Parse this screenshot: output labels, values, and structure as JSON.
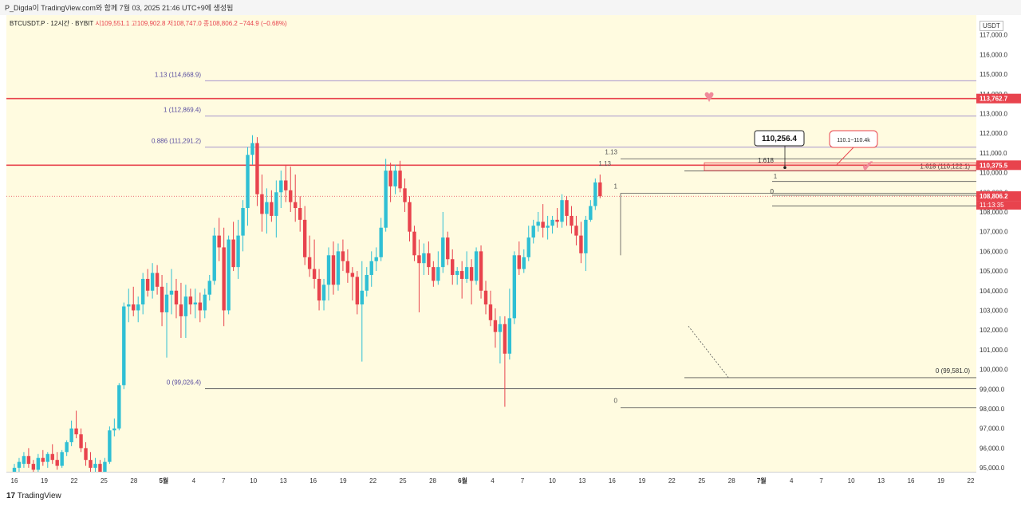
{
  "header": {
    "text": "P_Digda이 TradingView.com와 함께 7월 03, 2025 21:46 UTC+9에 생성됨"
  },
  "symbol_line": {
    "symbol": "BTCUSDT.P · 12시간 · BYBIT",
    "ohlc": "시109,551.1 고109,902.8 저108,747.0 종108,806.2 −744.9 (−0.68%)"
  },
  "currency": "USDT",
  "footer": {
    "logo": "TradingView",
    "logo_mark": "17"
  },
  "colors": {
    "up": "#2fbfd4",
    "down": "#e8434d",
    "background": "#fffbe0",
    "resistance": "#e8434d",
    "fib_line": "#9a88c9"
  },
  "chart_data": {
    "type": "candlestick",
    "ylim": [
      94800,
      118000
    ],
    "y_ticks": [
      95000,
      96000,
      97000,
      98000,
      99000,
      100000,
      101000,
      102000,
      103000,
      104000,
      105000,
      106000,
      107000,
      108000,
      109000,
      110000,
      111000,
      112000,
      113000,
      114000,
      115000,
      116000,
      117000
    ],
    "y_tick_labels": [
      "95,000.0",
      "96,000.0",
      "97,000.0",
      "98,000.0",
      "99,000.0",
      "100,000.0",
      "101,000.0",
      "102,000.0",
      "103,000.0",
      "104,000.0",
      "105,000.0",
      "106,000.0",
      "107,000.0",
      "108,000.0",
      "109,000.0",
      "110,000.0",
      "111,000.0",
      "112,000.0",
      "113,000.0",
      "114,000.0",
      "115,000.0",
      "116,000.0",
      "117,000.0"
    ],
    "x_ticks": [
      "16",
      "19",
      "22",
      "25",
      "28",
      "5월",
      "4",
      "7",
      "10",
      "13",
      "16",
      "19",
      "22",
      "25",
      "28",
      "6월",
      "4",
      "7",
      "10",
      "13",
      "16",
      "19",
      "22",
      "25",
      "28",
      "7월",
      "4",
      "7",
      "10",
      "13",
      "16",
      "19",
      "22"
    ],
    "x_tick_bold": [
      "5월",
      "6월",
      "7월"
    ],
    "price_labels": [
      {
        "value": 113762.7,
        "label": "113,762.7",
        "color": "#e8434d"
      },
      {
        "value": 110375.5,
        "label": "110,375.5",
        "color": "#e8434d"
      },
      {
        "value": 108806.2,
        "label": "108,806.2",
        "color": "#e8434d",
        "countdown": "11:13:35"
      }
    ],
    "horizontal_lines": [
      {
        "name": "resistance-113762",
        "value": 113762.7,
        "style": "resistance"
      },
      {
        "name": "resistance-110375",
        "value": 110375.5,
        "style": "resistance"
      }
    ],
    "fib_levels_large": [
      {
        "label": "1.13 (114,668.9)",
        "value": 114668.9
      },
      {
        "label": "1 (112,869.4)",
        "value": 112869.4
      },
      {
        "label": "0.886 (111,291.2)",
        "value": 111291.2
      },
      {
        "label": "0 (99,026.4)",
        "value": 99026.4
      }
    ],
    "fib_levels_mid": [
      {
        "label": "1.13",
        "value": 110700
      },
      {
        "label": "1",
        "value": 108950
      },
      {
        "label": "0",
        "value": 98050
      }
    ],
    "fib_levels_small": [
      {
        "label": "1.618",
        "value": 110256.4
      },
      {
        "label": "1",
        "value": 109550
      },
      {
        "label": "0",
        "value": 108850
      },
      {
        "label": "0 (99,581.0)",
        "value": 99581.0
      },
      {
        "label": "1.618 (110,122.1)",
        "value": 110122.1
      }
    ],
    "annotations": {
      "price_callout": "110,256.4",
      "zone_callout": "110.1~110.4k",
      "heart_1": "♥",
      "check": "✔"
    },
    "candles": [
      [
        94700,
        95200,
        94500,
        95000
      ],
      [
        95000,
        95500,
        94800,
        95300
      ],
      [
        95200,
        95800,
        95000,
        95600
      ],
      [
        95600,
        96000,
        95000,
        95200
      ],
      [
        95200,
        95400,
        94600,
        94900
      ],
      [
        94900,
        95700,
        94700,
        95500
      ],
      [
        95500,
        95900,
        95100,
        95300
      ],
      [
        95300,
        95800,
        95000,
        95700
      ],
      [
        95700,
        96200,
        95200,
        95400
      ],
      [
        95400,
        95800,
        94900,
        95100
      ],
      [
        95100,
        95900,
        95000,
        95800
      ],
      [
        95800,
        96400,
        95600,
        96300
      ],
      [
        96300,
        97400,
        96100,
        97000
      ],
      [
        97000,
        97900,
        96500,
        96700
      ],
      [
        96700,
        97000,
        95800,
        96000
      ],
      [
        96000,
        96300,
        95100,
        95400
      ],
      [
        95400,
        95800,
        94700,
        95000
      ],
      [
        95000,
        95500,
        94800,
        95200
      ],
      [
        95200,
        95400,
        94600,
        94800
      ],
      [
        94800,
        95500,
        94700,
        95300
      ],
      [
        95300,
        97100,
        95200,
        96900
      ],
      [
        96900,
        97500,
        96600,
        97000
      ],
      [
        97000,
        99300,
        96900,
        99200
      ],
      [
        99200,
        103400,
        99000,
        103200
      ],
      [
        103200,
        104100,
        102400,
        103300
      ],
      [
        103300,
        104200,
        102700,
        103000
      ],
      [
        103000,
        103700,
        102400,
        103300
      ],
      [
        103300,
        104900,
        102800,
        104600
      ],
      [
        104600,
        105100,
        103700,
        104000
      ],
      [
        104000,
        105400,
        103600,
        104900
      ],
      [
        104900,
        105300,
        103800,
        104200
      ],
      [
        104200,
        104800,
        102200,
        102900
      ],
      [
        102900,
        104400,
        100600,
        103800
      ],
      [
        103800,
        105100,
        102800,
        104000
      ],
      [
        104000,
        104600,
        102600,
        103300
      ],
      [
        103300,
        104400,
        101600,
        102700
      ],
      [
        102700,
        104300,
        101600,
        103700
      ],
      [
        103700,
        104100,
        102800,
        103300
      ],
      [
        103300,
        104100,
        102600,
        103400
      ],
      [
        103400,
        103900,
        102400,
        103000
      ],
      [
        103000,
        104100,
        102600,
        103800
      ],
      [
        103800,
        104800,
        103500,
        104500
      ],
      [
        104500,
        107200,
        104300,
        106800
      ],
      [
        106800,
        107700,
        105500,
        106200
      ],
      [
        106200,
        107200,
        102200,
        103000
      ],
      [
        103000,
        106800,
        102800,
        106600
      ],
      [
        106600,
        107500,
        105000,
        105200
      ],
      [
        105200,
        107600,
        104600,
        106800
      ],
      [
        106800,
        108600,
        106000,
        108200
      ],
      [
        108200,
        111300,
        107300,
        110900
      ],
      [
        110900,
        111900,
        110400,
        111500
      ],
      [
        111500,
        111800,
        108300,
        108900
      ],
      [
        108900,
        109900,
        107000,
        107900
      ],
      [
        107900,
        109200,
        106900,
        108500
      ],
      [
        108500,
        109100,
        107500,
        107800
      ],
      [
        107800,
        109600,
        106700,
        109000
      ],
      [
        109000,
        110100,
        108200,
        109600
      ],
      [
        109600,
        110400,
        108500,
        109100
      ],
      [
        109100,
        110300,
        108000,
        108500
      ],
      [
        108500,
        109900,
        107500,
        108200
      ],
      [
        108200,
        108800,
        107000,
        107600
      ],
      [
        107600,
        108300,
        105300,
        105700
      ],
      [
        105700,
        106800,
        104700,
        105100
      ],
      [
        105100,
        106600,
        104100,
        104600
      ],
      [
        104600,
        105100,
        103000,
        103500
      ],
      [
        103500,
        104600,
        103000,
        104300
      ],
      [
        104300,
        106200,
        103500,
        105800
      ],
      [
        105800,
        106500,
        103800,
        104300
      ],
      [
        104300,
        106400,
        104000,
        106000
      ],
      [
        106000,
        106600,
        105000,
        105500
      ],
      [
        105500,
        106100,
        104400,
        104900
      ],
      [
        104900,
        105200,
        103500,
        104700
      ],
      [
        104700,
        105000,
        102800,
        103300
      ],
      [
        103300,
        105500,
        100400,
        104000
      ],
      [
        104000,
        105200,
        103700,
        104800
      ],
      [
        104800,
        106000,
        104200,
        105500
      ],
      [
        105500,
        106200,
        105000,
        105700
      ],
      [
        105700,
        107700,
        105500,
        107200
      ],
      [
        107200,
        110700,
        107000,
        110100
      ],
      [
        110100,
        110500,
        108500,
        109300
      ],
      [
        109300,
        110400,
        108900,
        110100
      ],
      [
        110100,
        110600,
        109000,
        109200
      ],
      [
        109200,
        109700,
        108000,
        108500
      ],
      [
        108500,
        108800,
        106500,
        107000
      ],
      [
        107000,
        107300,
        105500,
        105800
      ],
      [
        105800,
        106600,
        102900,
        105400
      ],
      [
        105400,
        106400,
        104800,
        105900
      ],
      [
        105900,
        106500,
        104800,
        105200
      ],
      [
        105200,
        105500,
        104200,
        104500
      ],
      [
        104500,
        106000,
        104300,
        105200
      ],
      [
        105200,
        108000,
        104900,
        106700
      ],
      [
        106700,
        107000,
        105300,
        105600
      ],
      [
        105600,
        106100,
        104300,
        104800
      ],
      [
        104800,
        105200,
        104300,
        105000
      ],
      [
        105000,
        105500,
        103600,
        104600
      ],
      [
        104600,
        106000,
        104400,
        105200
      ],
      [
        105200,
        105600,
        103300,
        104500
      ],
      [
        104500,
        106200,
        104300,
        106000
      ],
      [
        106000,
        106300,
        103600,
        104000
      ],
      [
        104000,
        104500,
        102800,
        103300
      ],
      [
        103300,
        104000,
        102200,
        102500
      ],
      [
        102500,
        103100,
        101100,
        101900
      ],
      [
        101900,
        102700,
        100300,
        102300
      ],
      [
        102300,
        102700,
        98100,
        100800
      ],
      [
        100800,
        104100,
        100500,
        102600
      ],
      [
        102600,
        106000,
        102300,
        105800
      ],
      [
        105800,
        106500,
        104800,
        105100
      ],
      [
        105100,
        106100,
        104900,
        105700
      ],
      [
        105700,
        107300,
        105500,
        106700
      ],
      [
        106700,
        107600,
        106400,
        107300
      ],
      [
        107300,
        108000,
        107000,
        107500
      ],
      [
        107500,
        108400,
        106700,
        107200
      ],
      [
        107200,
        107800,
        106600,
        107300
      ],
      [
        107300,
        107800,
        106900,
        107600
      ],
      [
        107600,
        108200,
        107200,
        107500
      ],
      [
        107500,
        108900,
        107200,
        108600
      ],
      [
        108600,
        108800,
        107300,
        107800
      ],
      [
        107800,
        108300,
        106900,
        107300
      ],
      [
        107300,
        107800,
        106300,
        106800
      ],
      [
        106800,
        107500,
        105400,
        105900
      ],
      [
        105900,
        107800,
        105000,
        107600
      ],
      [
        107600,
        108600,
        107500,
        108300
      ],
      [
        108300,
        109700,
        108100,
        109500
      ],
      [
        109500,
        109900,
        108700,
        108800
      ]
    ]
  }
}
